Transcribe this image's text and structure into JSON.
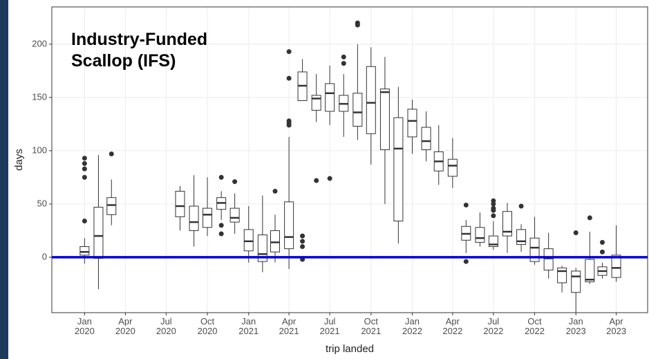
{
  "chart_data": {
    "type": "box",
    "annotation": "Industry-Funded\nScallop (IFS)",
    "x_label": "trip landed",
    "y_label": "days",
    "ylim": [
      -52,
      235
    ],
    "yticks": [
      0,
      50,
      100,
      150,
      200
    ],
    "xlim": [
      "2019-10-20",
      "2023-06-10"
    ],
    "xticks": [
      {
        "value": "2020-01",
        "label": "Jan\n2020"
      },
      {
        "value": "2020-04",
        "label": "Apr\n2020"
      },
      {
        "value": "2020-07",
        "label": "Jul\n2020"
      },
      {
        "value": "2020-10",
        "label": "Oct\n2020"
      },
      {
        "value": "2021-01",
        "label": "Jan\n2021"
      },
      {
        "value": "2021-04",
        "label": "Apr\n2021"
      },
      {
        "value": "2021-07",
        "label": "Jul\n2021"
      },
      {
        "value": "2021-10",
        "label": "Oct\n2021"
      },
      {
        "value": "2022-01",
        "label": "Jan\n2022"
      },
      {
        "value": "2022-04",
        "label": "Apr\n2022"
      },
      {
        "value": "2022-07",
        "label": "Jul\n2022"
      },
      {
        "value": "2022-10",
        "label": "Oct\n2022"
      },
      {
        "value": "2023-01",
        "label": "Jan\n2023"
      },
      {
        "value": "2023-04",
        "label": "Apr\n2023"
      }
    ],
    "grid": true,
    "box_color": "#333333",
    "hline": 0,
    "hline_color": "#0000e0",
    "boxes": [
      {
        "x": "2020-01",
        "whislo": -6,
        "q1": 2,
        "med": 5,
        "q3": 10,
        "whishi": 18,
        "fliers": [
          93,
          88,
          83,
          75,
          34
        ]
      },
      {
        "x": "2020-02",
        "whislo": -30,
        "q1": -1,
        "med": 20,
        "q3": 47,
        "whishi": 96,
        "fliers": []
      },
      {
        "x": "2020-03",
        "whislo": 30,
        "q1": 40,
        "med": 49,
        "q3": 56,
        "whishi": 73,
        "fliers": [
          97
        ]
      },
      {
        "x": "2020-08",
        "whislo": 25,
        "q1": 38,
        "med": 48,
        "q3": 62,
        "whishi": 67,
        "fliers": []
      },
      {
        "x": "2020-09",
        "whislo": 10,
        "q1": 25,
        "med": 33,
        "q3": 48,
        "whishi": 77,
        "fliers": []
      },
      {
        "x": "2020-10",
        "whislo": 20,
        "q1": 28,
        "med": 40,
        "q3": 46,
        "whishi": 75,
        "fliers": []
      },
      {
        "x": "2020-11",
        "whislo": 35,
        "q1": 45,
        "med": 51,
        "q3": 56,
        "whishi": 62,
        "fliers": [
          75,
          30,
          22
        ]
      },
      {
        "x": "2020-12",
        "whislo": 22,
        "q1": 33,
        "med": 37,
        "q3": 46,
        "whishi": 60,
        "fliers": [
          71
        ]
      },
      {
        "x": "2021-01",
        "whislo": -5,
        "q1": 6,
        "med": 15,
        "q3": 26,
        "whishi": 48,
        "fliers": []
      },
      {
        "x": "2021-02",
        "whislo": -14,
        "q1": -4,
        "med": 3,
        "q3": 21,
        "whishi": 58,
        "fliers": []
      },
      {
        "x": "2021-03",
        "whislo": -5,
        "q1": 5,
        "med": 14,
        "q3": 25,
        "whishi": 40,
        "fliers": [
          62
        ]
      },
      {
        "x": "2021-04",
        "whislo": -11,
        "q1": 8,
        "med": 19,
        "q3": 52,
        "whishi": 113,
        "fliers": [
          193,
          168,
          128,
          126,
          124
        ]
      },
      {
        "x": "2021-05",
        "whislo": 147,
        "q1": 147,
        "med": 161,
        "q3": 174,
        "whishi": 186,
        "fliers": [
          20,
          15,
          10,
          -2
        ]
      },
      {
        "x": "2021-06",
        "whislo": 127,
        "q1": 138,
        "med": 149,
        "q3": 152,
        "whishi": 172,
        "fliers": [
          72
        ]
      },
      {
        "x": "2021-07",
        "whislo": 124,
        "q1": 137,
        "med": 154,
        "q3": 163,
        "whishi": 180,
        "fliers": [
          74
        ]
      },
      {
        "x": "2021-08",
        "whislo": 113,
        "q1": 137,
        "med": 144,
        "q3": 152,
        "whishi": 172,
        "fliers": [
          188,
          182
        ]
      },
      {
        "x": "2021-09",
        "whislo": 110,
        "q1": 123,
        "med": 136,
        "q3": 154,
        "whishi": 200,
        "fliers": [
          220,
          218
        ]
      },
      {
        "x": "2021-10",
        "whislo": 87,
        "q1": 116,
        "med": 145,
        "q3": 179,
        "whishi": 197,
        "fliers": []
      },
      {
        "x": "2021-11",
        "whislo": 50,
        "q1": 101,
        "med": 155,
        "q3": 158,
        "whishi": 188,
        "fliers": []
      },
      {
        "x": "2021-12",
        "whislo": 13,
        "q1": 34,
        "med": 102,
        "q3": 131,
        "whishi": 160,
        "fliers": []
      },
      {
        "x": "2022-01",
        "whislo": 97,
        "q1": 113,
        "med": 128,
        "q3": 139,
        "whishi": 148,
        "fliers": []
      },
      {
        "x": "2022-02",
        "whislo": 90,
        "q1": 101,
        "med": 109,
        "q3": 122,
        "whishi": 137,
        "fliers": []
      },
      {
        "x": "2022-03",
        "whislo": 68,
        "q1": 81,
        "med": 90,
        "q3": 99,
        "whishi": 124,
        "fliers": []
      },
      {
        "x": "2022-04",
        "whislo": 65,
        "q1": 76,
        "med": 86,
        "q3": 92,
        "whishi": 112,
        "fliers": []
      },
      {
        "x": "2022-05",
        "whislo": 4,
        "q1": 16,
        "med": 22,
        "q3": 29,
        "whishi": 35,
        "fliers": [
          49,
          -4
        ]
      },
      {
        "x": "2022-06",
        "whislo": 10,
        "q1": 14,
        "med": 18,
        "q3": 28,
        "whishi": 42,
        "fliers": []
      },
      {
        "x": "2022-07",
        "whislo": 7,
        "q1": 10,
        "med": 12,
        "q3": 20,
        "whishi": 34,
        "fliers": [
          53,
          50,
          46,
          44,
          39
        ]
      },
      {
        "x": "2022-08",
        "whislo": 4,
        "q1": 20,
        "med": 24,
        "q3": 43,
        "whishi": 51,
        "fliers": []
      },
      {
        "x": "2022-09",
        "whislo": 5,
        "q1": 12,
        "med": 15,
        "q3": 26,
        "whishi": 31,
        "fliers": [
          48
        ]
      },
      {
        "x": "2022-10",
        "whislo": -7,
        "q1": -4,
        "med": 9,
        "q3": 18,
        "whishi": 38,
        "fliers": []
      },
      {
        "x": "2022-11",
        "whislo": -20,
        "q1": -12,
        "med": -1,
        "q3": 8,
        "whishi": 23,
        "fliers": []
      },
      {
        "x": "2022-12",
        "whislo": -33,
        "q1": -24,
        "med": -13,
        "q3": -10,
        "whishi": -8,
        "fliers": []
      },
      {
        "x": "2023-01",
        "whislo": -52,
        "q1": -33,
        "med": -18,
        "q3": -13,
        "whishi": -10,
        "fliers": [
          23
        ]
      },
      {
        "x": "2023-02",
        "whislo": -25,
        "q1": -23,
        "med": -21,
        "q3": -2,
        "whishi": 24,
        "fliers": [
          37
        ]
      },
      {
        "x": "2023-03",
        "whislo": -20,
        "q1": -17,
        "med": -13,
        "q3": -9,
        "whishi": -5,
        "fliers": [
          14,
          5
        ]
      },
      {
        "x": "2023-04",
        "whislo": -23,
        "q1": -19,
        "med": -10,
        "q3": 2,
        "whishi": 30,
        "fliers": []
      }
    ]
  }
}
